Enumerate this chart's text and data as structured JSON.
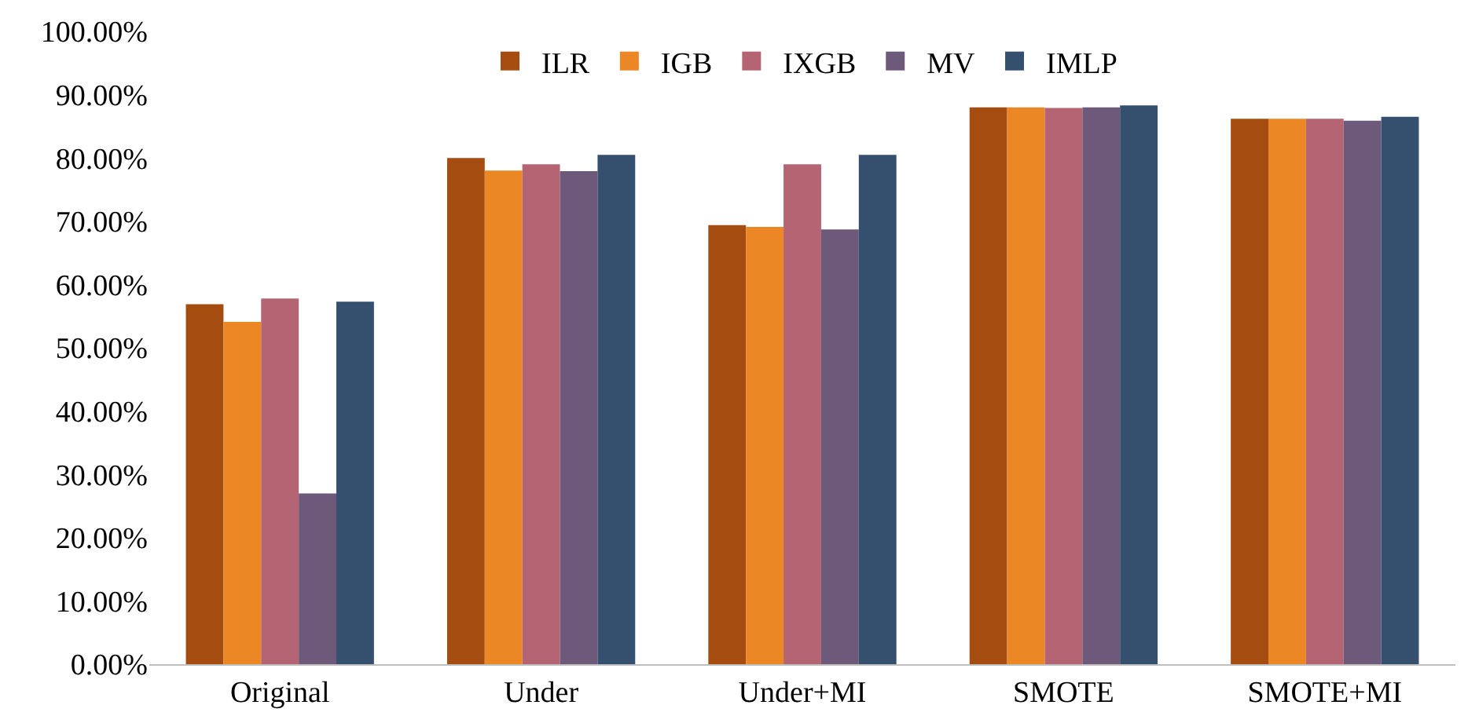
{
  "chart_data": {
    "type": "bar",
    "categories": [
      "Original",
      "Under",
      "Under+MI",
      "SMOTE",
      "SMOTE+MI"
    ],
    "series": [
      {
        "name": "ILR",
        "color": "#a54d11",
        "values": [
          56.9,
          80.0,
          69.4,
          88.0,
          86.2
        ]
      },
      {
        "name": "IGB",
        "color": "#ec8725",
        "values": [
          54.1,
          78.0,
          69.1,
          88.0,
          86.2
        ]
      },
      {
        "name": "IXGB",
        "color": "#b56473",
        "values": [
          57.8,
          79.0,
          79.0,
          87.9,
          86.2
        ]
      },
      {
        "name": "MV",
        "color": "#6d5a7a",
        "values": [
          27.0,
          77.9,
          68.7,
          88.0,
          85.9
        ]
      },
      {
        "name": "IMLP",
        "color": "#35506f",
        "values": [
          57.3,
          80.5,
          80.5,
          88.3,
          86.5
        ]
      }
    ],
    "ylim": [
      0,
      100
    ],
    "yticks": [
      {
        "value": 0,
        "label": "0.00%"
      },
      {
        "value": 10,
        "label": "10.00%"
      },
      {
        "value": 20,
        "label": "20.00%"
      },
      {
        "value": 30,
        "label": "30.00%"
      },
      {
        "value": 40,
        "label": "40.00%"
      },
      {
        "value": 50,
        "label": "50.00%"
      },
      {
        "value": 60,
        "label": "60.00%"
      },
      {
        "value": 70,
        "label": "70.00%"
      },
      {
        "value": 80,
        "label": "80.00%"
      },
      {
        "value": 90,
        "label": "90.00%"
      },
      {
        "value": 100,
        "label": "100.00%"
      }
    ],
    "grid": false,
    "legend": "top"
  }
}
